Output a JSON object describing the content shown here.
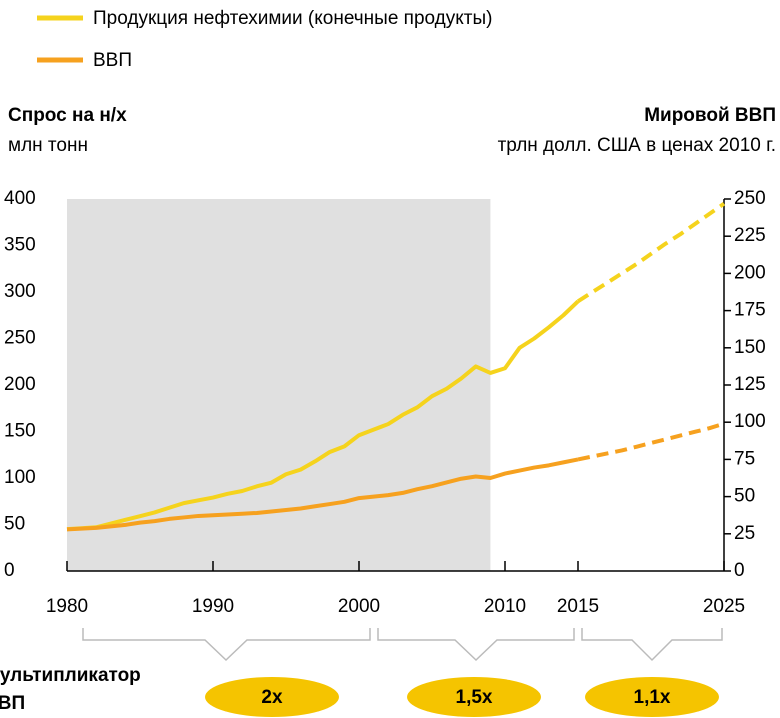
{
  "chart_data": {
    "type": "line",
    "left_axis_title": "Спрос на н/х",
    "left_axis_unit": "млн тонн",
    "right_axis_title": "Мировой ВВП",
    "right_axis_unit": "трлн долл. США в ценах 2010 г.",
    "x": [
      1980,
      1981,
      1982,
      1983,
      1984,
      1985,
      1986,
      1987,
      1988,
      1989,
      1990,
      1991,
      1992,
      1993,
      1994,
      1995,
      1996,
      1997,
      1998,
      1999,
      2000,
      2001,
      2002,
      2003,
      2004,
      2005,
      2006,
      2007,
      2008,
      2009,
      2010,
      2011,
      2012,
      2013,
      2014,
      2015,
      2016,
      2017,
      2018,
      2019,
      2020,
      2021,
      2022,
      2023,
      2024,
      2025
    ],
    "series": [
      {
        "name": "Продукция нефтехимии (конечные продукты)",
        "color": "#f5d31d",
        "axis": "y",
        "values": [
          45,
          46,
          47,
          51,
          55,
          59,
          63,
          68,
          73,
          76,
          79,
          83,
          86,
          91,
          95,
          104,
          109,
          118,
          128,
          134,
          146,
          152,
          158,
          168,
          176,
          188,
          196,
          207,
          220,
          213,
          218,
          240,
          250,
          262,
          275,
          290,
          300,
          310,
          320,
          330,
          341,
          352,
          362,
          373,
          384,
          395
        ]
      },
      {
        "name": "ВВП",
        "color": "#f6a11f",
        "axis": "y2",
        "values": [
          28,
          28.5,
          29,
          30,
          31,
          32.5,
          33.5,
          35,
          36,
          37,
          37.5,
          38,
          38.5,
          39,
          40,
          41,
          42,
          43.5,
          45,
          46.5,
          49,
          50,
          51,
          52.5,
          55,
          57,
          59.5,
          62,
          63.5,
          62.5,
          65.5,
          67.5,
          69.5,
          71,
          73,
          75,
          77,
          79,
          81,
          83.5,
          86,
          88.5,
          91,
          93.5,
          96,
          99
        ]
      }
    ],
    "dashed_from": 2015,
    "shaded_range": [
      1980,
      2009
    ],
    "xlim": [
      1980,
      2025
    ],
    "xticks": [
      1980,
      1990,
      2000,
      2010,
      2015,
      2025
    ],
    "ylim": [
      0,
      400
    ],
    "yticks": [
      0,
      50,
      100,
      150,
      200,
      250,
      300,
      350,
      400
    ],
    "y2lim": [
      0,
      250
    ],
    "y2ticks": [
      0,
      25,
      50,
      75,
      100,
      125,
      150,
      175,
      200,
      225,
      250
    ],
    "multiplier_label": [
      "Мультипликатор",
      "ВВП"
    ],
    "multipliers": [
      "2x",
      "1,5x",
      "1,1x"
    ]
  }
}
